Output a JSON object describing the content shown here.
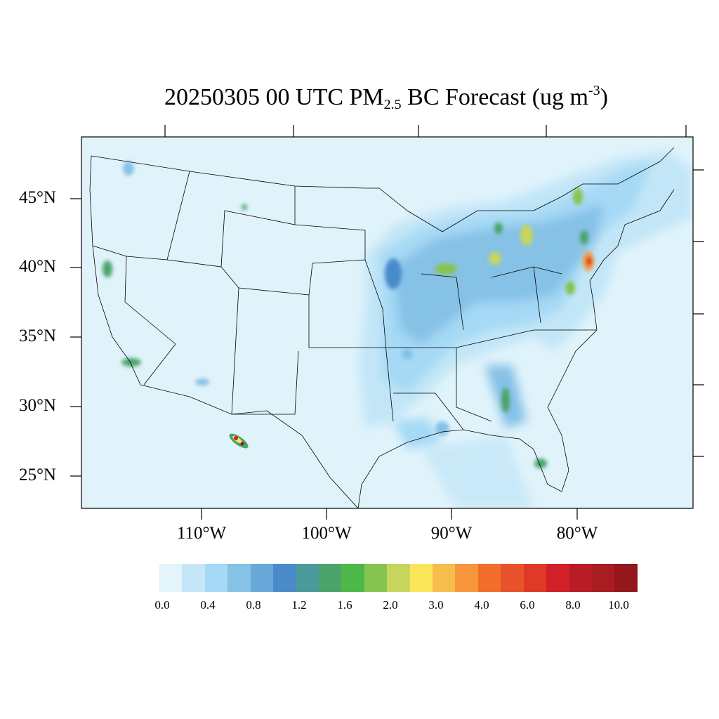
{
  "title": {
    "main": "20250305 00 UTC PM",
    "sub": "2.5",
    "rest": " BC Forecast (ug m",
    "sup": "-3",
    "close": ")"
  },
  "map": {
    "region": "CONUS",
    "background_color": "#e0f3fb",
    "lat_labels": [
      "45°N",
      "40°N",
      "35°N",
      "30°N",
      "25°N"
    ],
    "lon_labels": [
      "110°W",
      "100°W",
      "90°W",
      "80°W"
    ]
  },
  "colorbar": {
    "colors": [
      "#e3f4fb",
      "#c5e6f7",
      "#a5d9f5",
      "#86c1e6",
      "#68a9da",
      "#4a8acb",
      "#4a9a9c",
      "#4aa36a",
      "#4db848",
      "#85c450",
      "#c7d65a",
      "#f9e65a",
      "#f7bd4c",
      "#f7973c",
      "#f36d2b",
      "#e8532b",
      "#de3a27",
      "#d12028",
      "#b91c25",
      "#a81c22",
      "#93171b"
    ],
    "labels": [
      "0.0",
      "0.4",
      "0.8",
      "1.2",
      "1.6",
      "2.0",
      "3.0",
      "4.0",
      "6.0",
      "8.0",
      "10.0"
    ]
  }
}
